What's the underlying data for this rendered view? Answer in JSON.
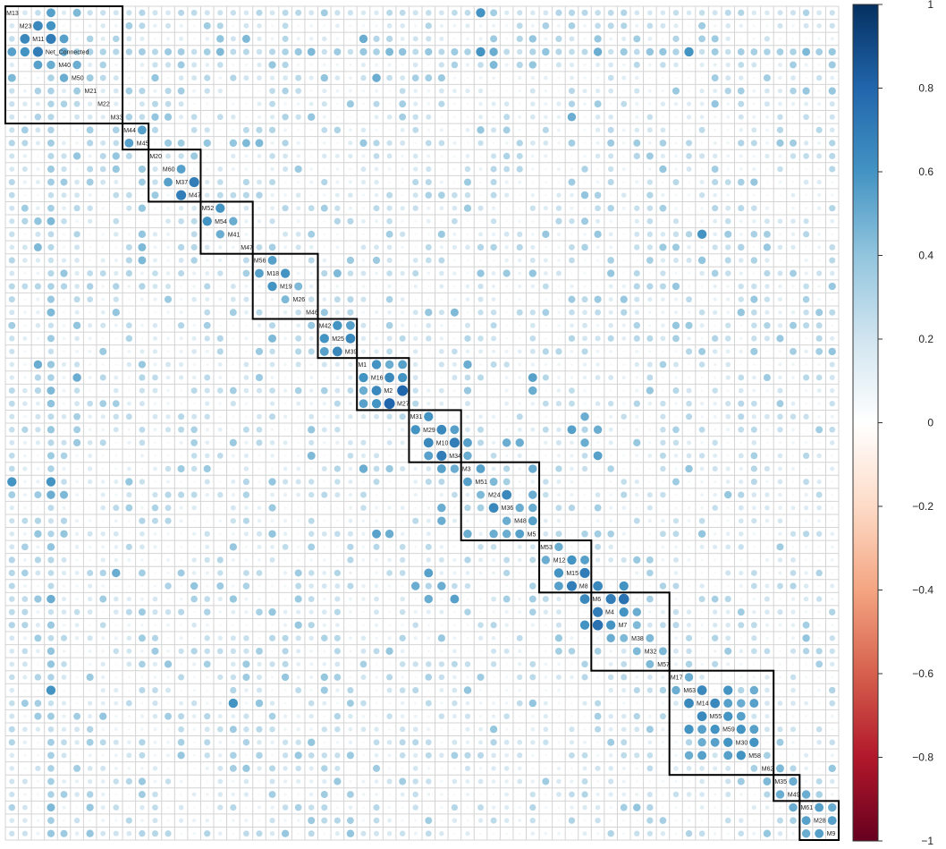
{
  "chart_data": {
    "type": "heatmap",
    "title": "",
    "variables": [
      "M13",
      "M23",
      "M11",
      "Net_Connected",
      "M40",
      "M50",
      "M21",
      "M22",
      "M33",
      "M44",
      "M45",
      "M20",
      "M60",
      "M37",
      "M47",
      "M52",
      "M54",
      "M41",
      "M47",
      "M56",
      "M18",
      "M19",
      "M26",
      "M46",
      "M42",
      "M25",
      "M39",
      "M1",
      "M16",
      "M2",
      "M27",
      "M31",
      "M29",
      "M10",
      "M34",
      "M3",
      "M51",
      "M24",
      "M36",
      "M48",
      "M5",
      "M53",
      "M12",
      "M15",
      "M8",
      "M6",
      "M4",
      "M7",
      "M38",
      "M32",
      "M57",
      "M17",
      "M63",
      "M14",
      "M55",
      "M59",
      "M30",
      "M58",
      "M62",
      "M35",
      "M49",
      "M61",
      "M28",
      "M9"
    ],
    "cluster_sizes": [
      9,
      2,
      4,
      4,
      5,
      3,
      4,
      4,
      6,
      4,
      6,
      8,
      2,
      3
    ],
    "strong_cells": [
      [
        0,
        3,
        0.55
      ],
      [
        1,
        2,
        0.65
      ],
      [
        1,
        3,
        0.6
      ],
      [
        2,
        3,
        0.7
      ],
      [
        2,
        4,
        0.55
      ],
      [
        3,
        4,
        0.5
      ],
      [
        4,
        5,
        0.5
      ],
      [
        0,
        5,
        0.45
      ],
      [
        0,
        36,
        0.6
      ],
      [
        3,
        36,
        0.6
      ],
      [
        3,
        37,
        0.5
      ],
      [
        3,
        45,
        0.5
      ],
      [
        3,
        52,
        0.6
      ],
      [
        3,
        61,
        0.45
      ],
      [
        4,
        37,
        0.45
      ],
      [
        5,
        28,
        0.5
      ],
      [
        8,
        43,
        0.5
      ],
      [
        9,
        10,
        0.55
      ],
      [
        10,
        19,
        0.45
      ],
      [
        12,
        13,
        0.55
      ],
      [
        13,
        14,
        0.7
      ],
      [
        15,
        16,
        0.6
      ],
      [
        16,
        17,
        0.5
      ],
      [
        17,
        53,
        0.6
      ],
      [
        19,
        20,
        0.55
      ],
      [
        20,
        21,
        0.6
      ],
      [
        21,
        22,
        0.45
      ],
      [
        24,
        25,
        0.6
      ],
      [
        25,
        26,
        0.65
      ],
      [
        24,
        26,
        0.55
      ],
      [
        27,
        28,
        0.6
      ],
      [
        27,
        29,
        0.5
      ],
      [
        28,
        29,
        0.65
      ],
      [
        29,
        30,
        0.8
      ],
      [
        28,
        30,
        0.6
      ],
      [
        27,
        30,
        0.55
      ],
      [
        31,
        32,
        0.6
      ],
      [
        32,
        33,
        0.65
      ],
      [
        33,
        34,
        0.7
      ],
      [
        32,
        34,
        0.55
      ],
      [
        29,
        40,
        0.5
      ],
      [
        35,
        36,
        0.55
      ],
      [
        36,
        37,
        0.45
      ],
      [
        37,
        38,
        0.65
      ],
      [
        38,
        39,
        0.5
      ],
      [
        39,
        40,
        0.55
      ],
      [
        37,
        40,
        0.5
      ],
      [
        35,
        40,
        0.5
      ],
      [
        38,
        40,
        0.5
      ],
      [
        33,
        35,
        0.55
      ],
      [
        34,
        35,
        0.5
      ],
      [
        33,
        38,
        0.5
      ],
      [
        33,
        39,
        0.5
      ],
      [
        32,
        43,
        0.55
      ],
      [
        32,
        45,
        0.5
      ],
      [
        34,
        45,
        0.55
      ],
      [
        33,
        44,
        0.5
      ],
      [
        41,
        42,
        0.5
      ],
      [
        42,
        43,
        0.6
      ],
      [
        43,
        44,
        0.7
      ],
      [
        42,
        44,
        0.55
      ],
      [
        44,
        45,
        0.65
      ],
      [
        45,
        46,
        0.7
      ],
      [
        46,
        47,
        0.6
      ],
      [
        45,
        47,
        0.75
      ],
      [
        44,
        47,
        0.6
      ],
      [
        46,
        48,
        0.5
      ],
      [
        47,
        48,
        0.45
      ],
      [
        48,
        49,
        0.45
      ],
      [
        49,
        50,
        0.45
      ],
      [
        51,
        52,
        0.5
      ],
      [
        52,
        53,
        0.65
      ],
      [
        53,
        54,
        0.65
      ],
      [
        54,
        55,
        0.6
      ],
      [
        55,
        56,
        0.6
      ],
      [
        56,
        57,
        0.6
      ],
      [
        52,
        55,
        0.6
      ],
      [
        53,
        55,
        0.55
      ],
      [
        53,
        57,
        0.55
      ],
      [
        54,
        56,
        0.55
      ],
      [
        52,
        57,
        0.5
      ],
      [
        55,
        57,
        0.55
      ],
      [
        53,
        56,
        0.5
      ],
      [
        58,
        59,
        0.45
      ],
      [
        59,
        60,
        0.5
      ],
      [
        60,
        61,
        0.5
      ],
      [
        61,
        62,
        0.55
      ],
      [
        62,
        63,
        0.55
      ],
      [
        61,
        63,
        0.5
      ],
      [
        2,
        18,
        0.45
      ],
      [
        3,
        16,
        0.45
      ],
      [
        3,
        23,
        0.45
      ],
      [
        20,
        25,
        0.45
      ],
      [
        23,
        34,
        0.45
      ],
      [
        27,
        35,
        0.5
      ],
      [
        28,
        40,
        0.55
      ],
      [
        2,
        27,
        0.5
      ],
      [
        3,
        29,
        0.45
      ],
      [
        31,
        44,
        0.5
      ],
      [
        10,
        18,
        0.45
      ]
    ],
    "color_scale": {
      "min": -1,
      "max": 1,
      "ticks": [
        1,
        0.8,
        0.6,
        0.4,
        0.2,
        0,
        -0.2,
        -0.4,
        -0.6,
        -0.8,
        -1
      ],
      "tick_labels": [
        "1",
        "0.8",
        "0.6",
        "0.4",
        "0.2",
        "0",
        "−0.2",
        "−0.4",
        "−0.6",
        "−0.8",
        "−1"
      ],
      "stops": [
        "#67001f",
        "#b2182b",
        "#d6604d",
        "#f4a582",
        "#fddbc7",
        "#ffffff",
        "#d1e5f0",
        "#92c5de",
        "#4393c3",
        "#2166ac",
        "#053061"
      ]
    },
    "legend_placement": "right",
    "grid": true
  }
}
